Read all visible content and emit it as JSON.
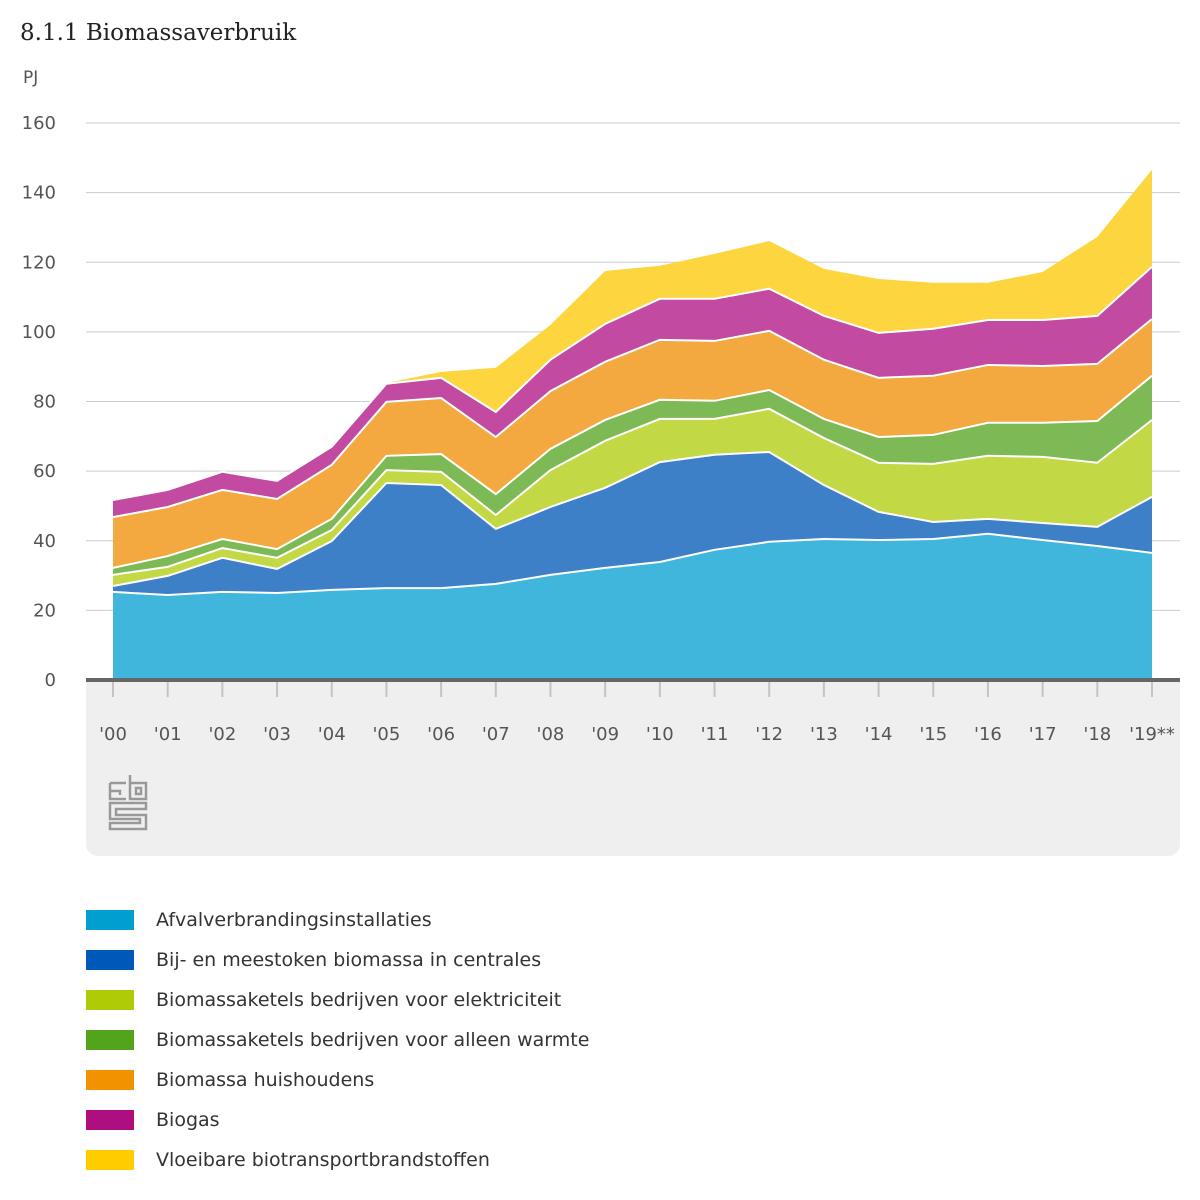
{
  "title": "8.1.1 Biomassaverbruik",
  "unit": "PJ",
  "chart_data": {
    "type": "area",
    "stacked": true,
    "title": "8.1.1 Biomassaverbruik",
    "xlabel": "",
    "ylabel": "PJ",
    "ylim": [
      0,
      160
    ],
    "yticks": [
      0,
      20,
      40,
      60,
      80,
      100,
      120,
      140,
      160
    ],
    "grid": true,
    "legend_position": "bottom",
    "categories": [
      "'00",
      "'01",
      "'02",
      "'03",
      "'04",
      "'05",
      "'06",
      "'07",
      "'08",
      "'09",
      "'10",
      "'11",
      "'12",
      "'13",
      "'14",
      "'15",
      "'16",
      "'17",
      "'18",
      "'19**"
    ],
    "series": [
      {
        "name": "Afvalverbrandingsinstallaties",
        "color": "#009fd0",
        "fill": "#41b6dc",
        "values": [
          25.3,
          24.4,
          25.3,
          25.0,
          25.9,
          26.4,
          26.4,
          27.6,
          30.2,
          32.2,
          33.9,
          37.4,
          39.7,
          40.5,
          40.2,
          40.5,
          42.0,
          40.2,
          38.5,
          36.5
        ]
      },
      {
        "name": "Bij- en meestoken biomassa in centrales",
        "color": "#0058b8",
        "fill": "#3d80c8",
        "values": [
          1.7,
          5.5,
          9.8,
          6.9,
          14.0,
          30.2,
          29.6,
          15.8,
          19.5,
          23.0,
          28.7,
          27.3,
          25.8,
          15.5,
          8.1,
          4.9,
          4.3,
          4.9,
          5.5,
          16.1
        ]
      },
      {
        "name": "Biomassaketels bedrijven voor elektriciteit",
        "color": "#afcb05",
        "fill": "#c3d845",
        "values": [
          3.2,
          2.6,
          2.8,
          3.2,
          3.2,
          3.7,
          3.8,
          4.0,
          10.6,
          13.5,
          12.4,
          10.3,
          12.4,
          13.5,
          14.1,
          16.7,
          18.1,
          19.0,
          18.4,
          22.1
        ]
      },
      {
        "name": "Biomassaketels bedrijven voor alleen warmte",
        "color": "#53a31d",
        "fill": "#7db955",
        "values": [
          2.0,
          3.1,
          2.6,
          2.5,
          3.2,
          4.1,
          5.1,
          6.0,
          6.1,
          6.0,
          5.5,
          5.2,
          5.4,
          5.5,
          7.4,
          8.3,
          9.5,
          9.8,
          12.0,
          12.7
        ]
      },
      {
        "name": "Biomassa huishoudens",
        "color": "#f39200",
        "fill": "#f3a940",
        "values": [
          14.6,
          14.1,
          14.1,
          14.4,
          15.5,
          15.5,
          16.1,
          16.4,
          16.6,
          16.7,
          17.2,
          17.2,
          17.0,
          17.0,
          17.0,
          17.0,
          16.6,
          16.3,
          16.4,
          16.3
        ]
      },
      {
        "name": "Biogas",
        "color": "#af0e80",
        "fill": "#c24aa0",
        "values": [
          4.9,
          4.9,
          5.2,
          5.2,
          5.2,
          5.2,
          5.8,
          7.2,
          9.0,
          10.9,
          11.8,
          12.1,
          12.1,
          12.6,
          12.9,
          13.5,
          12.9,
          13.2,
          13.8,
          15.0
        ]
      },
      {
        "name": "Vloeibare biotransportbrandstoffen",
        "color": "#ffcc00",
        "fill": "#fdd53f",
        "values": [
          0.0,
          0.0,
          0.0,
          0.0,
          0.0,
          0.2,
          1.7,
          12.7,
          10.0,
          15.2,
          9.5,
          12.9,
          13.7,
          13.5,
          15.5,
          13.2,
          10.7,
          13.8,
          22.7,
          27.9
        ]
      }
    ]
  }
}
